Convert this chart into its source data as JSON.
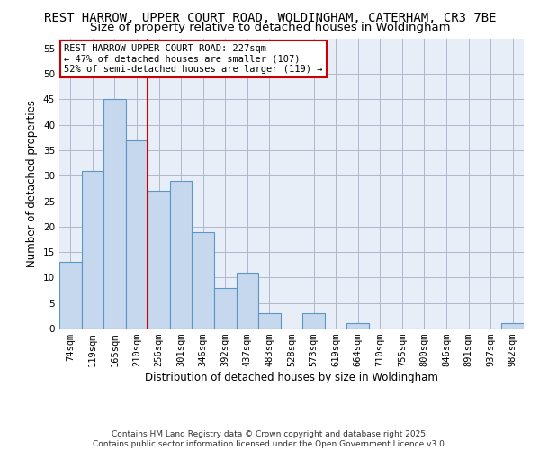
{
  "title_line1": "REST HARROW, UPPER COURT ROAD, WOLDINGHAM, CATERHAM, CR3 7BE",
  "title_line2": "Size of property relative to detached houses in Woldingham",
  "xlabel": "Distribution of detached houses by size in Woldingham",
  "ylabel": "Number of detached properties",
  "categories": [
    "74sqm",
    "119sqm",
    "165sqm",
    "210sqm",
    "256sqm",
    "301sqm",
    "346sqm",
    "392sqm",
    "437sqm",
    "483sqm",
    "528sqm",
    "573sqm",
    "619sqm",
    "664sqm",
    "710sqm",
    "755sqm",
    "800sqm",
    "846sqm",
    "891sqm",
    "937sqm",
    "982sqm"
  ],
  "values": [
    13,
    31,
    45,
    37,
    27,
    29,
    19,
    8,
    11,
    3,
    0,
    3,
    0,
    1,
    0,
    0,
    0,
    0,
    0,
    0,
    1
  ],
  "bar_color": "#c5d8ed",
  "bar_edge_color": "#5a96c8",
  "bar_edge_width": 0.8,
  "grid_color": "#b0b8cc",
  "bg_color": "#e8eef7",
  "red_line_x": 3.5,
  "red_line_color": "#cc0000",
  "annotation_text": "REST HARROW UPPER COURT ROAD: 227sqm\n← 47% of detached houses are smaller (107)\n52% of semi-detached houses are larger (119) →",
  "annotation_box_color": "white",
  "annotation_border_color": "#cc0000",
  "ylim": [
    0,
    57
  ],
  "yticks": [
    0,
    5,
    10,
    15,
    20,
    25,
    30,
    35,
    40,
    45,
    50,
    55
  ],
  "footnote": "Contains HM Land Registry data © Crown copyright and database right 2025.\nContains public sector information licensed under the Open Government Licence v3.0.",
  "title_fontsize": 10,
  "subtitle_fontsize": 9.5,
  "axis_label_fontsize": 8.5,
  "tick_fontsize": 7.5,
  "annotation_fontsize": 7.5,
  "footnote_fontsize": 6.5
}
